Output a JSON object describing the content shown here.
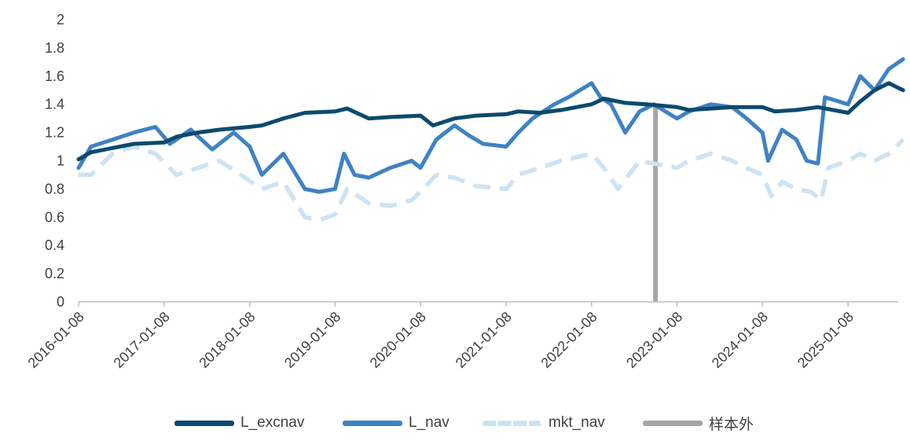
{
  "chart_data": {
    "type": "line",
    "title": "",
    "xlabel": "",
    "ylabel": "",
    "ylim": [
      0,
      2
    ],
    "yticks": [
      "0",
      "0.2",
      "0.4",
      "0.6",
      "0.8",
      "1",
      "1.2",
      "1.4",
      "1.6",
      "1.8",
      "2"
    ],
    "xticks": [
      "2016-01-08",
      "2017-01-08",
      "2018-01-08",
      "2019-01-08",
      "2020-01-08",
      "2021-01-08",
      "2022-01-08",
      "2023-01-08",
      "2024-01-08",
      "2025-01-08"
    ],
    "x_range": [
      "2016-01-08",
      "2025-08-31"
    ],
    "grid": false,
    "legend_position": "bottom",
    "series": [
      {
        "name": "L_excnav",
        "color": "#0b4a6e",
        "style": "solid",
        "x": [
          "2016-01-08",
          "2016-03-01",
          "2016-06-01",
          "2016-09-01",
          "2017-01-08",
          "2017-03-01",
          "2017-06-01",
          "2017-09-01",
          "2018-01-08",
          "2018-03-01",
          "2018-06-01",
          "2018-09-01",
          "2019-01-08",
          "2019-03-01",
          "2019-06-01",
          "2019-09-01",
          "2020-01-08",
          "2020-03-01",
          "2020-06-01",
          "2020-09-01",
          "2021-01-08",
          "2021-03-01",
          "2021-06-01",
          "2021-09-01",
          "2022-01-08",
          "2022-03-01",
          "2022-06-01",
          "2022-09-01",
          "2023-01-08",
          "2023-03-01",
          "2023-06-01",
          "2023-09-01",
          "2024-01-08",
          "2024-03-01",
          "2024-06-01",
          "2024-09-01",
          "2025-01-08",
          "2025-03-01",
          "2025-05-01",
          "2025-07-01",
          "2025-08-31"
        ],
        "values": [
          1.01,
          1.06,
          1.09,
          1.12,
          1.13,
          1.17,
          1.2,
          1.22,
          1.24,
          1.25,
          1.3,
          1.34,
          1.35,
          1.37,
          1.3,
          1.31,
          1.32,
          1.25,
          1.3,
          1.32,
          1.33,
          1.35,
          1.34,
          1.36,
          1.4,
          1.44,
          1.41,
          1.4,
          1.38,
          1.36,
          1.37,
          1.38,
          1.38,
          1.35,
          1.36,
          1.38,
          1.34,
          1.42,
          1.5,
          1.55,
          1.5
        ]
      },
      {
        "name": "L_nav",
        "color": "#3f82c4",
        "style": "solid",
        "x": [
          "2016-01-08",
          "2016-03-01",
          "2016-06-01",
          "2016-09-01",
          "2016-12-01",
          "2017-02-01",
          "2017-05-01",
          "2017-08-01",
          "2017-11-01",
          "2018-01-08",
          "2018-03-01",
          "2018-06-01",
          "2018-09-01",
          "2018-11-01",
          "2019-01-08",
          "2019-02-15",
          "2019-04-01",
          "2019-06-01",
          "2019-09-01",
          "2019-12-01",
          "2020-01-08",
          "2020-03-15",
          "2020-06-01",
          "2020-08-01",
          "2020-10-01",
          "2021-01-08",
          "2021-03-01",
          "2021-05-01",
          "2021-08-01",
          "2021-10-01",
          "2022-01-08",
          "2022-02-15",
          "2022-04-01",
          "2022-06-01",
          "2022-08-01",
          "2022-10-01",
          "2023-01-08",
          "2023-03-01",
          "2023-06-01",
          "2023-09-01",
          "2023-11-01",
          "2024-01-08",
          "2024-02-01",
          "2024-04-01",
          "2024-06-01",
          "2024-07-15",
          "2024-09-01",
          "2024-10-01",
          "2025-01-08",
          "2025-03-01",
          "2025-05-01",
          "2025-07-01",
          "2025-08-31"
        ],
        "values": [
          0.95,
          1.1,
          1.15,
          1.2,
          1.24,
          1.12,
          1.22,
          1.08,
          1.2,
          1.1,
          0.9,
          1.05,
          0.8,
          0.78,
          0.8,
          1.05,
          0.9,
          0.88,
          0.95,
          1.0,
          0.95,
          1.15,
          1.25,
          1.18,
          1.12,
          1.1,
          1.2,
          1.3,
          1.4,
          1.45,
          1.55,
          1.45,
          1.4,
          1.2,
          1.35,
          1.4,
          1.3,
          1.35,
          1.4,
          1.38,
          1.3,
          1.2,
          1.0,
          1.22,
          1.15,
          1.0,
          0.98,
          1.45,
          1.4,
          1.6,
          1.5,
          1.65,
          1.72
        ]
      },
      {
        "name": "mkt_nav",
        "color": "#cde3f3",
        "style": "dashed",
        "x": [
          "2016-01-08",
          "2016-03-01",
          "2016-06-01",
          "2016-09-01",
          "2016-12-01",
          "2017-03-01",
          "2017-06-01",
          "2017-09-01",
          "2017-12-01",
          "2018-03-01",
          "2018-06-01",
          "2018-09-01",
          "2018-11-01",
          "2019-01-08",
          "2019-03-01",
          "2019-06-01",
          "2019-09-01",
          "2019-12-01",
          "2020-01-08",
          "2020-03-15",
          "2020-06-01",
          "2020-09-01",
          "2021-01-08",
          "2021-03-01",
          "2021-06-01",
          "2021-09-01",
          "2022-01-08",
          "2022-03-01",
          "2022-05-01",
          "2022-08-01",
          "2022-10-01",
          "2023-01-08",
          "2023-03-01",
          "2023-06-01",
          "2023-09-01",
          "2023-11-01",
          "2024-01-08",
          "2024-02-15",
          "2024-04-01",
          "2024-06-01",
          "2024-08-01",
          "2024-09-15",
          "2024-10-15",
          "2025-01-08",
          "2025-03-01",
          "2025-05-01",
          "2025-07-01",
          "2025-08-31"
        ],
        "values": [
          0.9,
          0.9,
          1.05,
          1.1,
          1.05,
          0.9,
          0.95,
          1.0,
          0.9,
          0.8,
          0.85,
          0.6,
          0.58,
          0.62,
          0.8,
          0.7,
          0.68,
          0.72,
          0.78,
          0.9,
          0.88,
          0.82,
          0.8,
          0.9,
          0.95,
          1.0,
          1.05,
          0.95,
          0.8,
          1.0,
          0.98,
          0.95,
          1.0,
          1.05,
          1.0,
          0.95,
          0.9,
          0.75,
          0.85,
          0.8,
          0.78,
          0.72,
          0.95,
          1.0,
          1.05,
          1.0,
          1.05,
          1.15
        ]
      },
      {
        "name": "样本外",
        "color": "#a6a6a6",
        "style": "vertical-marker",
        "x": "2022-10-08"
      }
    ]
  }
}
